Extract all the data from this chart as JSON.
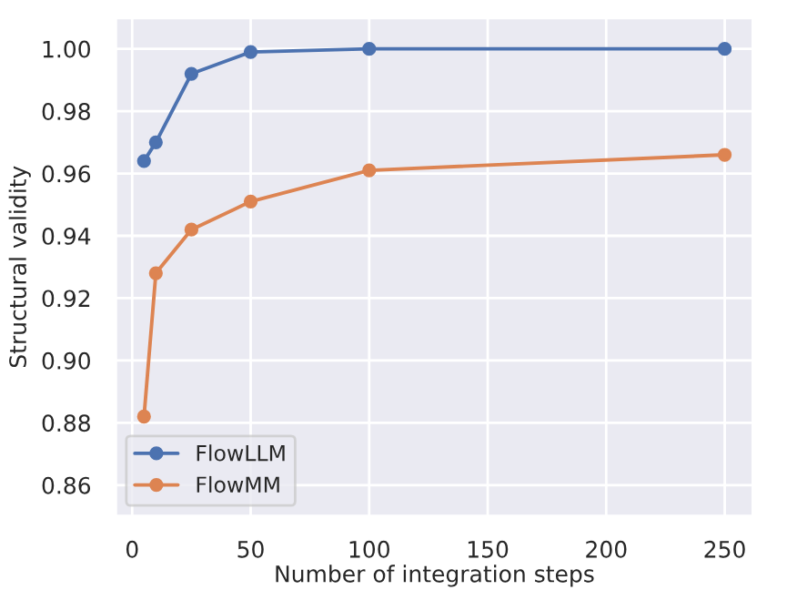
{
  "chart_data": {
    "type": "line",
    "xlabel": "Number of integration steps",
    "ylabel": "Structural validity",
    "x": [
      5,
      10,
      25,
      50,
      100,
      250
    ],
    "series": [
      {
        "name": "FlowLLM",
        "color": "#4c72b0",
        "values": [
          0.964,
          0.97,
          0.992,
          0.999,
          1.0,
          1.0
        ]
      },
      {
        "name": "FlowMM",
        "color": "#dd8452",
        "values": [
          0.882,
          0.928,
          0.942,
          0.951,
          0.961,
          0.966
        ]
      }
    ],
    "xlim": [
      -7,
      262
    ],
    "ylim": [
      0.85,
      1.01
    ],
    "xticks": [
      0,
      50,
      100,
      150,
      200,
      250
    ],
    "yticks": [
      {
        "value": 0.86,
        "label": "0.86"
      },
      {
        "value": 0.88,
        "label": "0.88"
      },
      {
        "value": 0.9,
        "label": "0.90"
      },
      {
        "value": 0.92,
        "label": "0.92"
      },
      {
        "value": 0.94,
        "label": "0.94"
      },
      {
        "value": 0.96,
        "label": "0.96"
      },
      {
        "value": 0.98,
        "label": "0.98"
      },
      {
        "value": 1.0,
        "label": "1.00"
      }
    ],
    "grid": true,
    "legend": "bottom left",
    "marker": "circle",
    "line_style": "solid"
  }
}
